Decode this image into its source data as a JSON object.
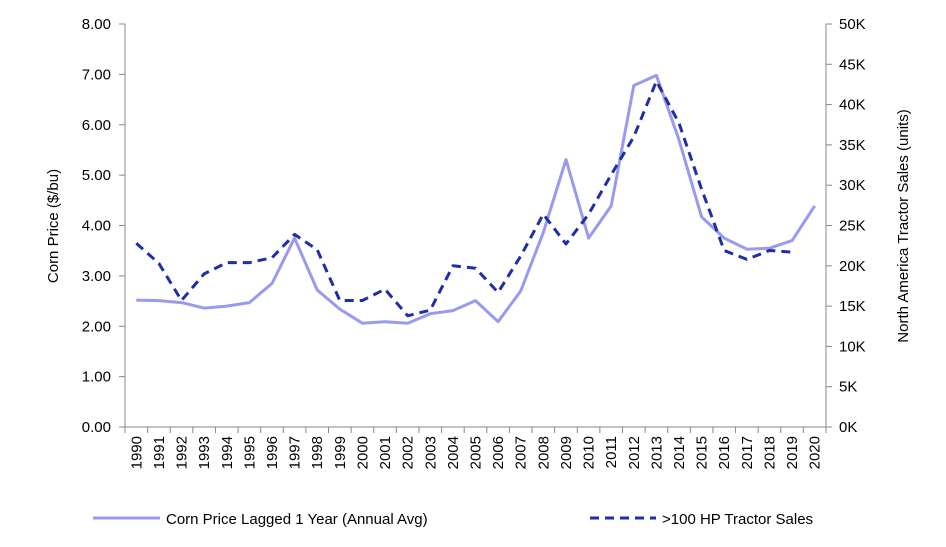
{
  "chart_data": {
    "type": "line",
    "title": "",
    "categories": [
      "1990",
      "1991",
      "1992",
      "1993",
      "1994",
      "1995",
      "1996",
      "1997",
      "1998",
      "1999",
      "2000",
      "2001",
      "2002",
      "2003",
      "2004",
      "2005",
      "2006",
      "2007",
      "2008",
      "2009",
      "2010",
      "2011",
      "2012",
      "2013",
      "2014",
      "2015",
      "2016",
      "2017",
      "2018",
      "2019",
      "2020"
    ],
    "y_left": {
      "label": "Corn Price ($/bu)",
      "range": [
        0,
        8
      ],
      "ticks": [
        "0.00",
        "1.00",
        "2.00",
        "3.00",
        "4.00",
        "5.00",
        "6.00",
        "7.00",
        "8.00"
      ]
    },
    "y_right": {
      "label": "North America Tractor Sales (units)",
      "range": [
        0,
        50000
      ],
      "ticks": [
        "0K",
        "5K",
        "10K",
        "15K",
        "20K",
        "25K",
        "30K",
        "35K",
        "40K",
        "45K",
        "50K"
      ]
    },
    "grid": false,
    "legend_position": "bottom",
    "series": [
      {
        "name": "Corn Price Lagged 1 Year (Annual Avg)",
        "axis": "left",
        "style": "solid",
        "color": "#9999ee",
        "values": [
          2.52,
          2.51,
          2.47,
          2.36,
          2.4,
          2.47,
          2.85,
          3.75,
          2.72,
          2.34,
          2.06,
          2.09,
          2.06,
          2.25,
          2.31,
          2.51,
          2.09,
          2.7,
          3.86,
          5.31,
          3.75,
          4.39,
          6.78,
          6.98,
          5.7,
          4.17,
          3.75,
          3.53,
          3.55,
          3.7,
          4.39
        ]
      },
      {
        "name": ">100 HP Tractor Sales",
        "axis": "right",
        "style": "dashed",
        "color": "#1f2ea6",
        "values": [
          22800,
          20300,
          15700,
          19000,
          20400,
          20400,
          21000,
          23900,
          22000,
          15700,
          15700,
          17100,
          13800,
          14500,
          20000,
          19700,
          16700,
          21200,
          26400,
          22700,
          26400,
          31300,
          36000,
          42900,
          37700,
          29500,
          21900,
          20800,
          21900,
          21700,
          null
        ]
      }
    ]
  }
}
